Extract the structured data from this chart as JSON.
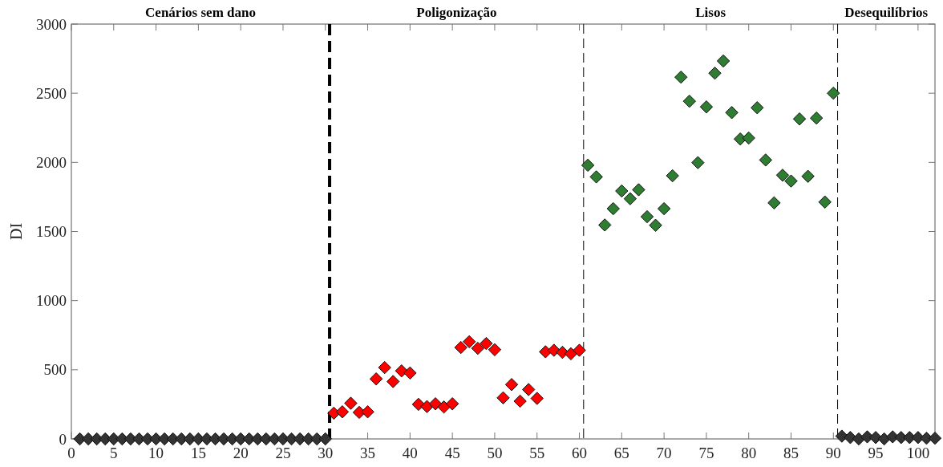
{
  "chart_data": {
    "type": "scatter",
    "ylabel": "DI",
    "marker": "diamond",
    "xlim": [
      0,
      102
    ],
    "ylim": [
      0,
      3000
    ],
    "xticks": [
      0,
      5,
      10,
      15,
      20,
      25,
      30,
      35,
      40,
      45,
      50,
      55,
      60,
      65,
      70,
      75,
      80,
      85,
      90,
      95,
      100
    ],
    "yticks": [
      0,
      500,
      1000,
      1500,
      2000,
      2500,
      3000
    ],
    "annotations": [
      "Cenários sem dano",
      "Poligonização",
      "Lisos",
      "Desequilíbrios"
    ],
    "ref_lines": [
      {
        "axis": "x",
        "value": 30.5,
        "line_style": "dashed",
        "color": "#000000"
      },
      {
        "axis": "x",
        "value": 60.5,
        "line_style": "dashed",
        "color": "#000000"
      },
      {
        "axis": "x",
        "value": 90.5,
        "line_style": "dashed",
        "color": "#000000"
      }
    ],
    "series": [
      {
        "color": "#333333",
        "x": [
          1,
          2,
          3,
          4,
          5,
          6,
          7,
          8,
          9,
          10,
          11,
          12,
          13,
          14,
          15,
          16,
          17,
          18,
          19,
          20,
          21,
          22,
          23,
          24,
          25,
          26,
          27,
          28,
          29,
          30,
          91,
          92,
          93,
          94,
          95,
          96,
          97,
          98,
          99,
          100,
          101,
          102
        ],
        "values": [
          0,
          0,
          0,
          0,
          0,
          0,
          0,
          0,
          0,
          0,
          0,
          0,
          0,
          0,
          0,
          0,
          0,
          0,
          0,
          0,
          0,
          0,
          0,
          0,
          0,
          0,
          0,
          0,
          0,
          0,
          20,
          10,
          0,
          15,
          10,
          0,
          15,
          10,
          10,
          10,
          5,
          5
        ]
      },
      {
        "color": "#ff0000",
        "x": [
          31,
          32,
          33,
          34,
          35,
          36,
          37,
          38,
          39,
          40,
          41,
          42,
          43,
          44,
          45,
          46,
          47,
          48,
          49,
          50,
          51,
          52,
          53,
          54,
          55,
          56,
          57,
          58,
          59,
          60
        ],
        "values": [
          186,
          196,
          258,
          192,
          196,
          434,
          516,
          415,
          492,
          477,
          250,
          234,
          254,
          231,
          254,
          661,
          703,
          655,
          690,
          645,
          297,
          393,
          273,
          357,
          293,
          630,
          641,
          626,
          616,
          641
        ]
      },
      {
        "color": "#2e7d32",
        "x": [
          61,
          62,
          63,
          64,
          65,
          66,
          67,
          68,
          69,
          70,
          71,
          72,
          73,
          74,
          75,
          76,
          77,
          78,
          79,
          80,
          81,
          82,
          83,
          84,
          85,
          86,
          87,
          88,
          89,
          90
        ],
        "values": [
          1979,
          1895,
          1547,
          1665,
          1793,
          1737,
          1802,
          1607,
          1545,
          1665,
          1903,
          2616,
          2442,
          1998,
          2401,
          2645,
          2733,
          2360,
          2169,
          2176,
          2395,
          2017,
          1707,
          1907,
          1865,
          2314,
          1899,
          2320,
          1713,
          2500
        ]
      }
    ]
  }
}
